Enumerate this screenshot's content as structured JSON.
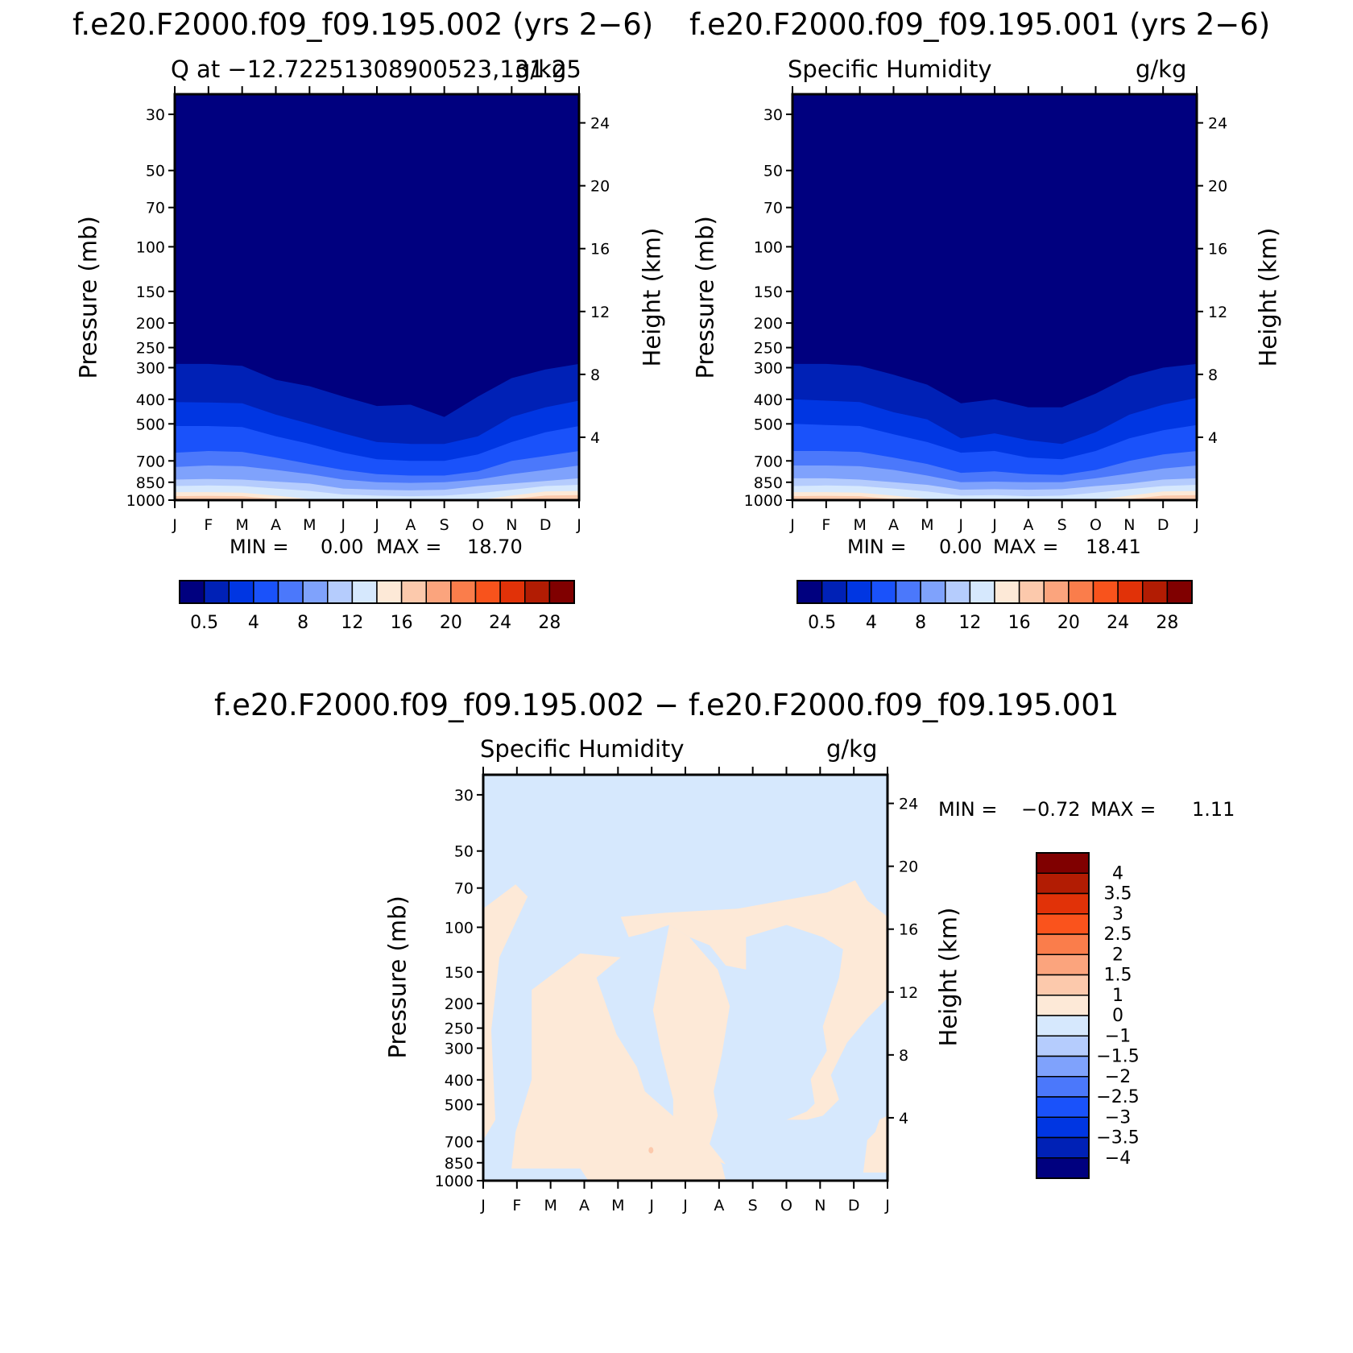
{
  "chart_data": [
    {
      "type": "contour",
      "case_title": "f.e20.F2000.f09_f09.195.002 (yrs 2−6)",
      "subtitle_left": "Q at −12.72251308900523,131.25",
      "subtitle_right": "g/kg",
      "ylabel": "Pressure (mb)",
      "ylabel_right": "Height (km)",
      "y_ticks": [
        "30",
        "50",
        "70",
        "100",
        "150",
        "200",
        "250",
        "300",
        "400",
        "500",
        "700",
        "850",
        "1000"
      ],
      "y_right_ticks": [
        "24",
        "20",
        "16",
        "12",
        "8",
        "4"
      ],
      "x_ticks": [
        "J",
        "F",
        "M",
        "A",
        "M",
        "J",
        "J",
        "A",
        "S",
        "O",
        "N",
        "D",
        "J"
      ],
      "min_label": "MIN =",
      "min_value": "0.00",
      "max_label": "MAX =",
      "max_value": "18.70",
      "colorbar_labels": [
        "0.5",
        "4",
        "8",
        "12",
        "16",
        "20",
        "24",
        "28"
      ],
      "colors": [
        "#00007f",
        "#0021b6",
        "#0036e2",
        "#1a52fa",
        "#4b78fb",
        "#7fa2fc",
        "#b5ccfd",
        "#d6e8fd",
        "#fde9d7",
        "#fcc9ac",
        "#fba47d",
        "#fa7d4b",
        "#f8531c",
        "#e13208",
        "#b21c03",
        "#800000"
      ]
    },
    {
      "type": "contour",
      "case_title": "f.e20.F2000.f09_f09.195.001 (yrs 2−6)",
      "subtitle_left": "Specific Humidity",
      "subtitle_right": "g/kg",
      "ylabel": "Pressure (mb)",
      "ylabel_right": "Height (km)",
      "y_ticks": [
        "30",
        "50",
        "70",
        "100",
        "150",
        "200",
        "250",
        "300",
        "400",
        "500",
        "700",
        "850",
        "1000"
      ],
      "y_right_ticks": [
        "24",
        "20",
        "16",
        "12",
        "8",
        "4"
      ],
      "x_ticks": [
        "J",
        "F",
        "M",
        "A",
        "M",
        "J",
        "J",
        "A",
        "S",
        "O",
        "N",
        "D",
        "J"
      ],
      "min_label": "MIN =",
      "min_value": "0.00",
      "max_label": "MAX =",
      "max_value": "18.41",
      "colorbar_labels": [
        "0.5",
        "4",
        "8",
        "12",
        "16",
        "20",
        "24",
        "28"
      ],
      "colors": [
        "#00007f",
        "#0021b6",
        "#0036e2",
        "#1a52fa",
        "#4b78fb",
        "#7fa2fc",
        "#b5ccfd",
        "#d6e8fd",
        "#fde9d7",
        "#fcc9ac",
        "#fba47d",
        "#fa7d4b",
        "#f8531c",
        "#e13208",
        "#b21c03",
        "#800000"
      ]
    },
    {
      "type": "contour",
      "case_title": "f.e20.F2000.f09_f09.195.002 − f.e20.F2000.f09_f09.195.001",
      "subtitle_left": "Specific Humidity",
      "subtitle_right": "g/kg",
      "ylabel": "Pressure (mb)",
      "ylabel_right": "Height (km)",
      "y_ticks": [
        "30",
        "50",
        "70",
        "100",
        "150",
        "200",
        "250",
        "300",
        "400",
        "500",
        "700",
        "850",
        "1000"
      ],
      "y_right_ticks": [
        "24",
        "20",
        "16",
        "12",
        "8",
        "4"
      ],
      "x_ticks": [
        "J",
        "F",
        "M",
        "A",
        "M",
        "J",
        "J",
        "A",
        "S",
        "O",
        "N",
        "D",
        "J"
      ],
      "min_label": "MIN =",
      "min_value": "−0.72",
      "max_label": "MAX =",
      "max_value": "1.11",
      "colorbar_labels": [
        "4",
        "3.5",
        "3",
        "2.5",
        "2",
        "1.5",
        "1",
        "0",
        "−1",
        "−1.5",
        "−2",
        "−2.5",
        "−3",
        "−3.5",
        "−4"
      ],
      "colors": [
        "#800000",
        "#b21c03",
        "#e13208",
        "#fa531c",
        "#fa7d4b",
        "#fba47d",
        "#fcc9ac",
        "#fde9d7",
        "#d6e8fd",
        "#b5ccfd",
        "#7fa2fc",
        "#4b78fb",
        "#1a52fa",
        "#0036e2",
        "#0021b6",
        "#00007f"
      ]
    }
  ]
}
